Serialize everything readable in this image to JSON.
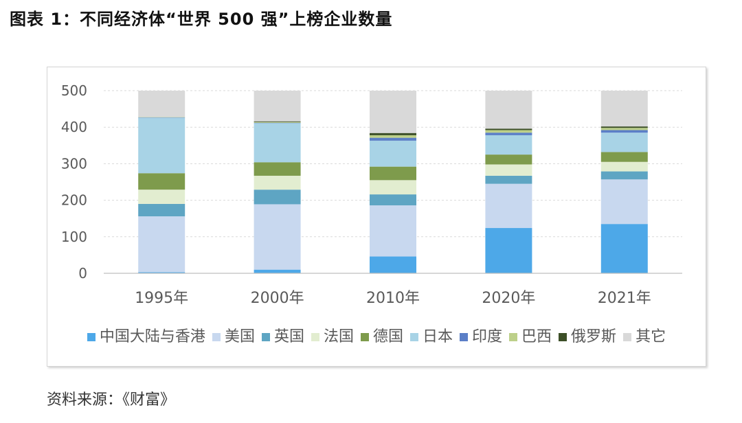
{
  "title": "图表 1：不同经济体“世界 500 强”上榜企业数量",
  "source": "资料来源：《财富》",
  "chart_data": {
    "type": "bar",
    "stacked": true,
    "categories": [
      "1995年",
      "2000年",
      "2010年",
      "2020年",
      "2021年"
    ],
    "ylim": [
      0,
      500
    ],
    "yticks": [
      "0",
      "100",
      "200",
      "300",
      "400",
      "500"
    ],
    "grid": true,
    "legend_position": "bottom",
    "series": [
      {
        "name": "中国大陆与香港",
        "color": "#4DA8E8",
        "values": [
          3,
          10,
          46,
          124,
          135
        ]
      },
      {
        "name": "美国",
        "color": "#C8D8EF",
        "values": [
          153,
          179,
          140,
          121,
          122
        ]
      },
      {
        "name": "英国",
        "color": "#5EA5C3",
        "values": [
          34,
          40,
          30,
          22,
          22
        ]
      },
      {
        "name": "法国",
        "color": "#E2EDD0",
        "values": [
          39,
          38,
          39,
          31,
          26
        ]
      },
      {
        "name": "德国",
        "color": "#7E9B4C",
        "values": [
          45,
          37,
          37,
          27,
          27
        ]
      },
      {
        "name": "日本",
        "color": "#A8D3E6",
        "values": [
          152,
          107,
          71,
          53,
          53
        ]
      },
      {
        "name": "印度",
        "color": "#5B7FC7",
        "values": [
          1,
          1,
          8,
          7,
          7
        ]
      },
      {
        "name": "巴西",
        "color": "#BDD08A",
        "values": [
          1,
          2,
          7,
          7,
          6
        ]
      },
      {
        "name": "俄罗斯",
        "color": "#3C4F27",
        "values": [
          0,
          2,
          6,
          4,
          4
        ]
      },
      {
        "name": "其它",
        "color": "#D9D9D9",
        "values": [
          72,
          84,
          116,
          104,
          98
        ]
      }
    ]
  }
}
